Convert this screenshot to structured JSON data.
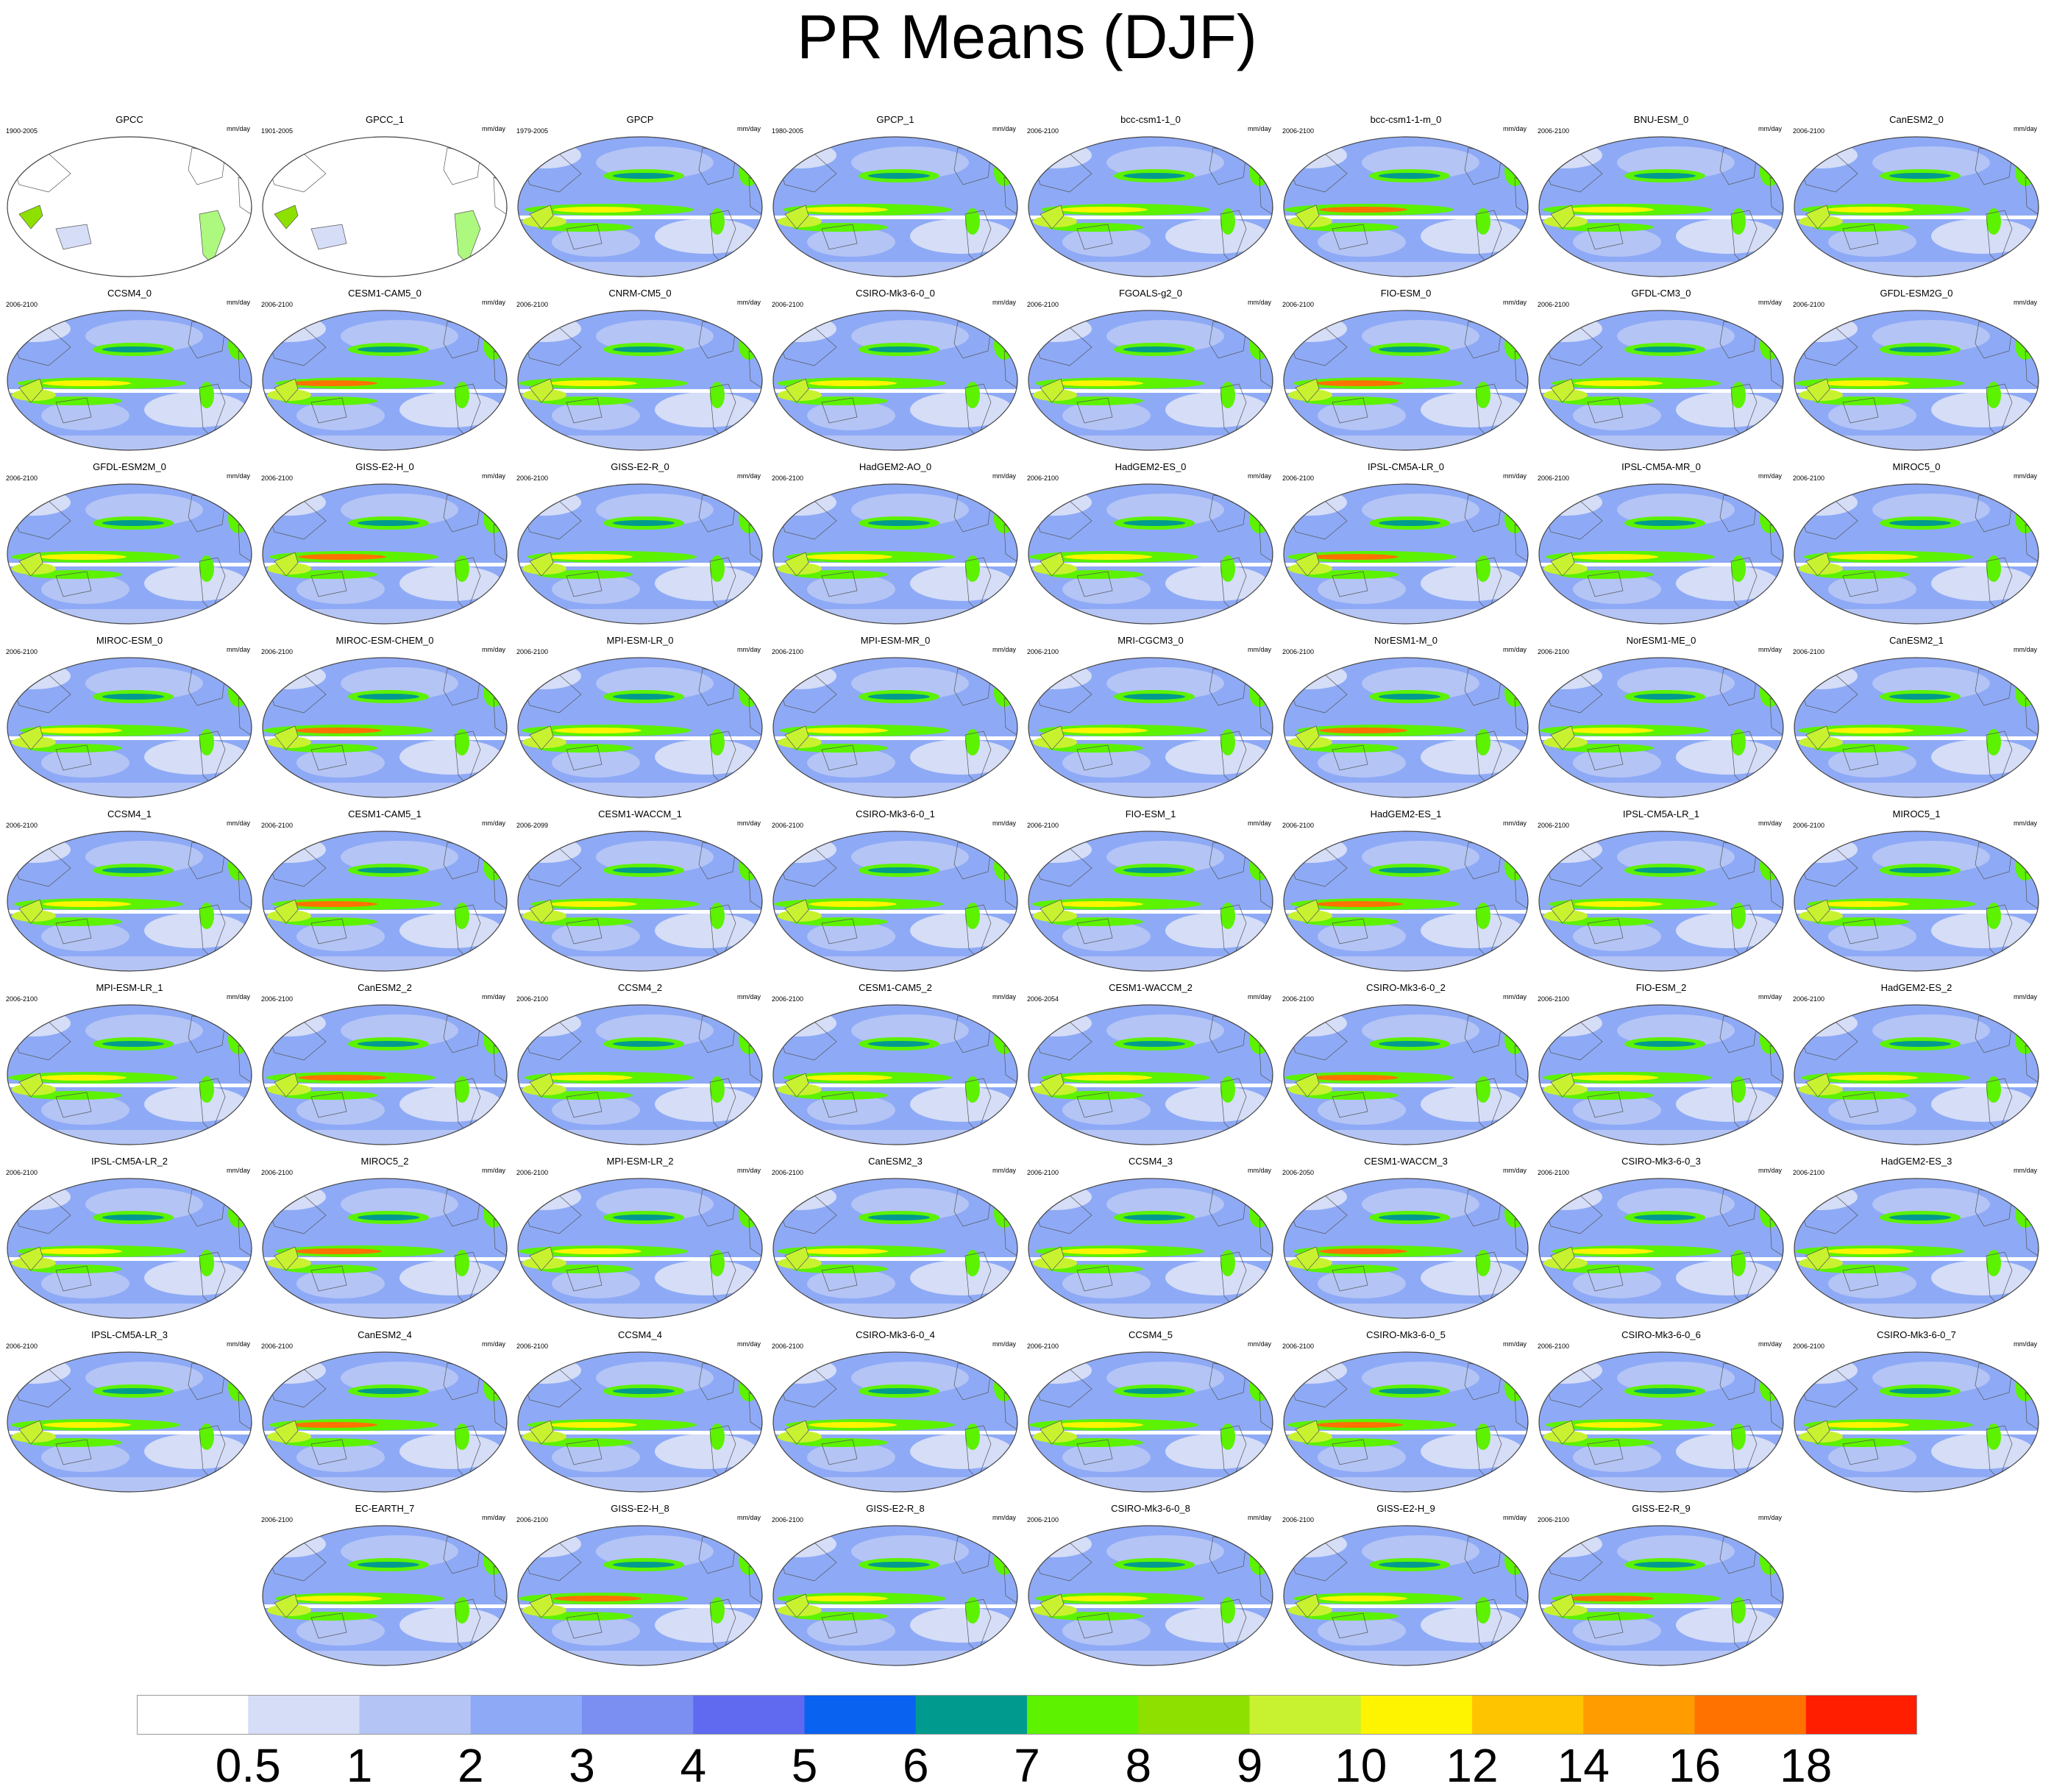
{
  "chart_data": {
    "type": "heatmap",
    "title": "PR Means (DJF)",
    "units": "mm/day",
    "levels": [
      "0.5",
      "1",
      "2",
      "3",
      "4",
      "5",
      "6",
      "7",
      "8",
      "9",
      "10",
      "12",
      "14",
      "16",
      "18"
    ],
    "colors": [
      "#ffffff",
      "#d5ddf7",
      "#b4c4f5",
      "#8eaaf6",
      "#7b8ef2",
      "#5f6af0",
      "#0a62f0",
      "#009a8f",
      "#5cf200",
      "#8ee000",
      "#c8f230",
      "#fff400",
      "#ffc400",
      "#ff9c00",
      "#ff7200",
      "#ff1e00"
    ],
    "panels": [
      {
        "name": "GPCC",
        "years": "1900-2005"
      },
      {
        "name": "GPCC_1",
        "years": "1901-2005"
      },
      {
        "name": "GPCP",
        "years": "1979-2005"
      },
      {
        "name": "GPCP_1",
        "years": "1980-2005"
      },
      {
        "name": "bcc-csm1-1_0",
        "years": "2006-2100"
      },
      {
        "name": "bcc-csm1-1-m_0",
        "years": "2006-2100"
      },
      {
        "name": "BNU-ESM_0",
        "years": "2006-2100"
      },
      {
        "name": "CanESM2_0",
        "years": "2006-2100"
      },
      {
        "name": "CCSM4_0",
        "years": "2006-2100"
      },
      {
        "name": "CESM1-CAM5_0",
        "years": "2006-2100"
      },
      {
        "name": "CNRM-CM5_0",
        "years": "2006-2100"
      },
      {
        "name": "CSIRO-Mk3-6-0_0",
        "years": "2006-2100"
      },
      {
        "name": "FGOALS-g2_0",
        "years": "2006-2100"
      },
      {
        "name": "FIO-ESM_0",
        "years": "2006-2100"
      },
      {
        "name": "GFDL-CM3_0",
        "years": "2006-2100"
      },
      {
        "name": "GFDL-ESM2G_0",
        "years": "2006-2100"
      },
      {
        "name": "GFDL-ESM2M_0",
        "years": "2006-2100"
      },
      {
        "name": "GISS-E2-H_0",
        "years": "2006-2100"
      },
      {
        "name": "GISS-E2-R_0",
        "years": "2006-2100"
      },
      {
        "name": "HadGEM2-AO_0",
        "years": "2006-2100"
      },
      {
        "name": "HadGEM2-ES_0",
        "years": "2006-2100"
      },
      {
        "name": "IPSL-CM5A-LR_0",
        "years": "2006-2100"
      },
      {
        "name": "IPSL-CM5A-MR_0",
        "years": "2006-2100"
      },
      {
        "name": "MIROC5_0",
        "years": "2006-2100"
      },
      {
        "name": "MIROC-ESM_0",
        "years": "2006-2100"
      },
      {
        "name": "MIROC-ESM-CHEM_0",
        "years": "2006-2100"
      },
      {
        "name": "MPI-ESM-LR_0",
        "years": "2006-2100"
      },
      {
        "name": "MPI-ESM-MR_0",
        "years": "2006-2100"
      },
      {
        "name": "MRI-CGCM3_0",
        "years": "2006-2100"
      },
      {
        "name": "NorESM1-M_0",
        "years": "2006-2100"
      },
      {
        "name": "NorESM1-ME_0",
        "years": "2006-2100"
      },
      {
        "name": "CanESM2_1",
        "years": "2006-2100"
      },
      {
        "name": "CCSM4_1",
        "years": "2006-2100"
      },
      {
        "name": "CESM1-CAM5_1",
        "years": "2006-2100"
      },
      {
        "name": "CESM1-WACCM_1",
        "years": "2006-2099"
      },
      {
        "name": "CSIRO-Mk3-6-0_1",
        "years": "2006-2100"
      },
      {
        "name": "FIO-ESM_1",
        "years": "2006-2100"
      },
      {
        "name": "HadGEM2-ES_1",
        "years": "2006-2100"
      },
      {
        "name": "IPSL-CM5A-LR_1",
        "years": "2006-2100"
      },
      {
        "name": "MIROC5_1",
        "years": "2006-2100"
      },
      {
        "name": "MPI-ESM-LR_1",
        "years": "2006-2100"
      },
      {
        "name": "CanESM2_2",
        "years": "2006-2100"
      },
      {
        "name": "CCSM4_2",
        "years": "2006-2100"
      },
      {
        "name": "CESM1-CAM5_2",
        "years": "2006-2100"
      },
      {
        "name": "CESM1-WACCM_2",
        "years": "2006-2054"
      },
      {
        "name": "CSIRO-Mk3-6-0_2",
        "years": "2006-2100"
      },
      {
        "name": "FIO-ESM_2",
        "years": "2006-2100"
      },
      {
        "name": "HadGEM2-ES_2",
        "years": "2006-2100"
      },
      {
        "name": "IPSL-CM5A-LR_2",
        "years": "2006-2100"
      },
      {
        "name": "MIROC5_2",
        "years": "2006-2100"
      },
      {
        "name": "MPI-ESM-LR_2",
        "years": "2006-2100"
      },
      {
        "name": "CanESM2_3",
        "years": "2006-2100"
      },
      {
        "name": "CCSM4_3",
        "years": "2006-2100"
      },
      {
        "name": "CESM1-WACCM_3",
        "years": "2006-2050"
      },
      {
        "name": "CSIRO-Mk3-6-0_3",
        "years": "2006-2100"
      },
      {
        "name": "HadGEM2-ES_3",
        "years": "2006-2100"
      },
      {
        "name": "IPSL-CM5A-LR_3",
        "years": "2006-2100"
      },
      {
        "name": "CanESM2_4",
        "years": "2006-2100"
      },
      {
        "name": "CCSM4_4",
        "years": "2006-2100"
      },
      {
        "name": "CSIRO-Mk3-6-0_4",
        "years": "2006-2100"
      },
      {
        "name": "CCSM4_5",
        "years": "2006-2100"
      },
      {
        "name": "CSIRO-Mk3-6-0_5",
        "years": "2006-2100"
      },
      {
        "name": "CSIRO-Mk3-6-0_6",
        "years": "2006-2100"
      },
      {
        "name": "CSIRO-Mk3-6-0_7",
        "years": "2006-2100"
      },
      {
        "name": "EC-EARTH_7",
        "years": "2006-2100"
      },
      {
        "name": "GISS-E2-H_8",
        "years": "2006-2100"
      },
      {
        "name": "GISS-E2-R_8",
        "years": "2006-2100"
      },
      {
        "name": "CSIRO-Mk3-6-0_8",
        "years": "2006-2100"
      },
      {
        "name": "GISS-E2-H_9",
        "years": "2006-2100"
      },
      {
        "name": "GISS-E2-R_9",
        "years": "2006-2100"
      }
    ]
  }
}
